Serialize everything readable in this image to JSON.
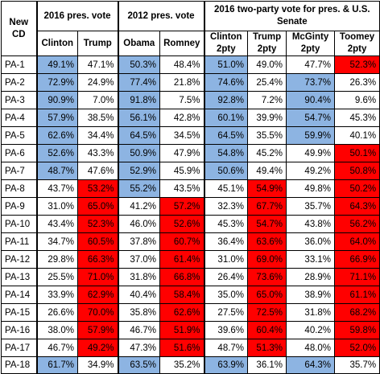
{
  "headers": {
    "cd": "New CD",
    "group_2016": "2016 pres. vote",
    "group_2012": "2012 pres. vote",
    "group_twoparty": "2016 two-party vote for pres. & U.S. Senate",
    "columns": [
      "Clinton",
      "Trump",
      "Obama",
      "Romney",
      "Clinton 2pty",
      "Trump 2pty",
      "McGinty 2pty",
      "Toomey 2pty"
    ]
  },
  "colors": {
    "blue": "#8db4e2",
    "red": "#ff0000",
    "white": "#ffffff"
  },
  "rows": [
    {
      "cd": "PA-1",
      "v": [
        "49.1%",
        "47.1%",
        "50.3%",
        "48.4%",
        "51.0%",
        "49.0%",
        "47.7%",
        "52.3%"
      ],
      "c": [
        "b",
        "w",
        "b",
        "w",
        "b",
        "w",
        "w",
        "r"
      ]
    },
    {
      "cd": "PA-2",
      "v": [
        "72.9%",
        "24.9%",
        "77.4%",
        "21.8%",
        "74.6%",
        "25.4%",
        "73.7%",
        "26.3%"
      ],
      "c": [
        "b",
        "w",
        "b",
        "w",
        "b",
        "w",
        "b",
        "w"
      ]
    },
    {
      "cd": "PA-3",
      "v": [
        "90.9%",
        "7.0%",
        "91.8%",
        "7.5%",
        "92.8%",
        "7.2%",
        "90.4%",
        "9.6%"
      ],
      "c": [
        "b",
        "w",
        "b",
        "w",
        "b",
        "w",
        "b",
        "w"
      ]
    },
    {
      "cd": "PA-4",
      "v": [
        "57.9%",
        "38.5%",
        "56.1%",
        "42.8%",
        "60.1%",
        "39.9%",
        "54.7%",
        "45.3%"
      ],
      "c": [
        "b",
        "w",
        "b",
        "w",
        "b",
        "w",
        "b",
        "w"
      ]
    },
    {
      "cd": "PA-5",
      "v": [
        "62.6%",
        "34.4%",
        "64.5%",
        "34.5%",
        "64.5%",
        "35.5%",
        "59.9%",
        "40.1%"
      ],
      "c": [
        "b",
        "w",
        "b",
        "w",
        "b",
        "w",
        "b",
        "w"
      ]
    },
    {
      "cd": "PA-6",
      "v": [
        "52.6%",
        "43.3%",
        "50.9%",
        "47.9%",
        "54.8%",
        "45.2%",
        "49.9%",
        "50.1%"
      ],
      "c": [
        "b",
        "w",
        "b",
        "w",
        "b",
        "w",
        "w",
        "r"
      ]
    },
    {
      "cd": "PA-7",
      "v": [
        "48.7%",
        "47.6%",
        "52.9%",
        "45.9%",
        "50.6%",
        "49.4%",
        "49.2%",
        "50.8%"
      ],
      "c": [
        "b",
        "w",
        "b",
        "w",
        "b",
        "w",
        "w",
        "r"
      ]
    },
    {
      "cd": "PA-8",
      "v": [
        "43.7%",
        "53.2%",
        "55.2%",
        "43.5%",
        "45.1%",
        "54.9%",
        "49.8%",
        "50.2%"
      ],
      "c": [
        "w",
        "r",
        "b",
        "w",
        "w",
        "r",
        "w",
        "r"
      ]
    },
    {
      "cd": "PA-9",
      "v": [
        "31.0%",
        "65.0%",
        "41.2%",
        "57.2%",
        "32.3%",
        "67.7%",
        "35.7%",
        "64.3%"
      ],
      "c": [
        "w",
        "r",
        "w",
        "r",
        "w",
        "r",
        "w",
        "r"
      ]
    },
    {
      "cd": "PA-10",
      "v": [
        "43.4%",
        "52.3%",
        "46.0%",
        "52.6%",
        "45.3%",
        "54.7%",
        "43.8%",
        "56.2%"
      ],
      "c": [
        "w",
        "r",
        "w",
        "r",
        "w",
        "r",
        "w",
        "r"
      ]
    },
    {
      "cd": "PA-11",
      "v": [
        "34.7%",
        "60.5%",
        "37.8%",
        "60.7%",
        "36.4%",
        "63.6%",
        "36.0%",
        "64.0%"
      ],
      "c": [
        "w",
        "r",
        "w",
        "r",
        "w",
        "r",
        "w",
        "r"
      ]
    },
    {
      "cd": "PA-12",
      "v": [
        "29.8%",
        "66.3%",
        "37.0%",
        "61.4%",
        "31.0%",
        "69.0%",
        "33.1%",
        "66.9%"
      ],
      "c": [
        "w",
        "r",
        "w",
        "r",
        "w",
        "r",
        "w",
        "r"
      ]
    },
    {
      "cd": "PA-13",
      "v": [
        "25.5%",
        "71.0%",
        "31.8%",
        "66.8%",
        "26.4%",
        "73.6%",
        "28.9%",
        "71.1%"
      ],
      "c": [
        "w",
        "r",
        "w",
        "r",
        "w",
        "r",
        "w",
        "r"
      ]
    },
    {
      "cd": "PA-14",
      "v": [
        "33.9%",
        "62.9%",
        "40.4%",
        "58.4%",
        "35.0%",
        "65.0%",
        "38.9%",
        "61.1%"
      ],
      "c": [
        "w",
        "r",
        "w",
        "r",
        "w",
        "r",
        "w",
        "r"
      ]
    },
    {
      "cd": "PA-15",
      "v": [
        "26.6%",
        "70.0%",
        "35.8%",
        "62.6%",
        "27.5%",
        "72.5%",
        "31.8%",
        "68.2%"
      ],
      "c": [
        "w",
        "r",
        "w",
        "r",
        "w",
        "r",
        "w",
        "r"
      ]
    },
    {
      "cd": "PA-16",
      "v": [
        "38.0%",
        "57.9%",
        "46.7%",
        "51.9%",
        "39.6%",
        "60.4%",
        "40.2%",
        "59.8%"
      ],
      "c": [
        "w",
        "r",
        "w",
        "r",
        "w",
        "r",
        "w",
        "r"
      ]
    },
    {
      "cd": "PA-17",
      "v": [
        "46.7%",
        "49.2%",
        "47.3%",
        "51.6%",
        "48.7%",
        "51.3%",
        "48.0%",
        "52.0%"
      ],
      "c": [
        "w",
        "r",
        "w",
        "r",
        "w",
        "r",
        "w",
        "r"
      ]
    },
    {
      "cd": "PA-18",
      "v": [
        "61.7%",
        "34.9%",
        "63.5%",
        "35.2%",
        "63.9%",
        "36.1%",
        "64.3%",
        "35.7%"
      ],
      "c": [
        "b",
        "w",
        "b",
        "w",
        "b",
        "w",
        "b",
        "w"
      ]
    }
  ]
}
